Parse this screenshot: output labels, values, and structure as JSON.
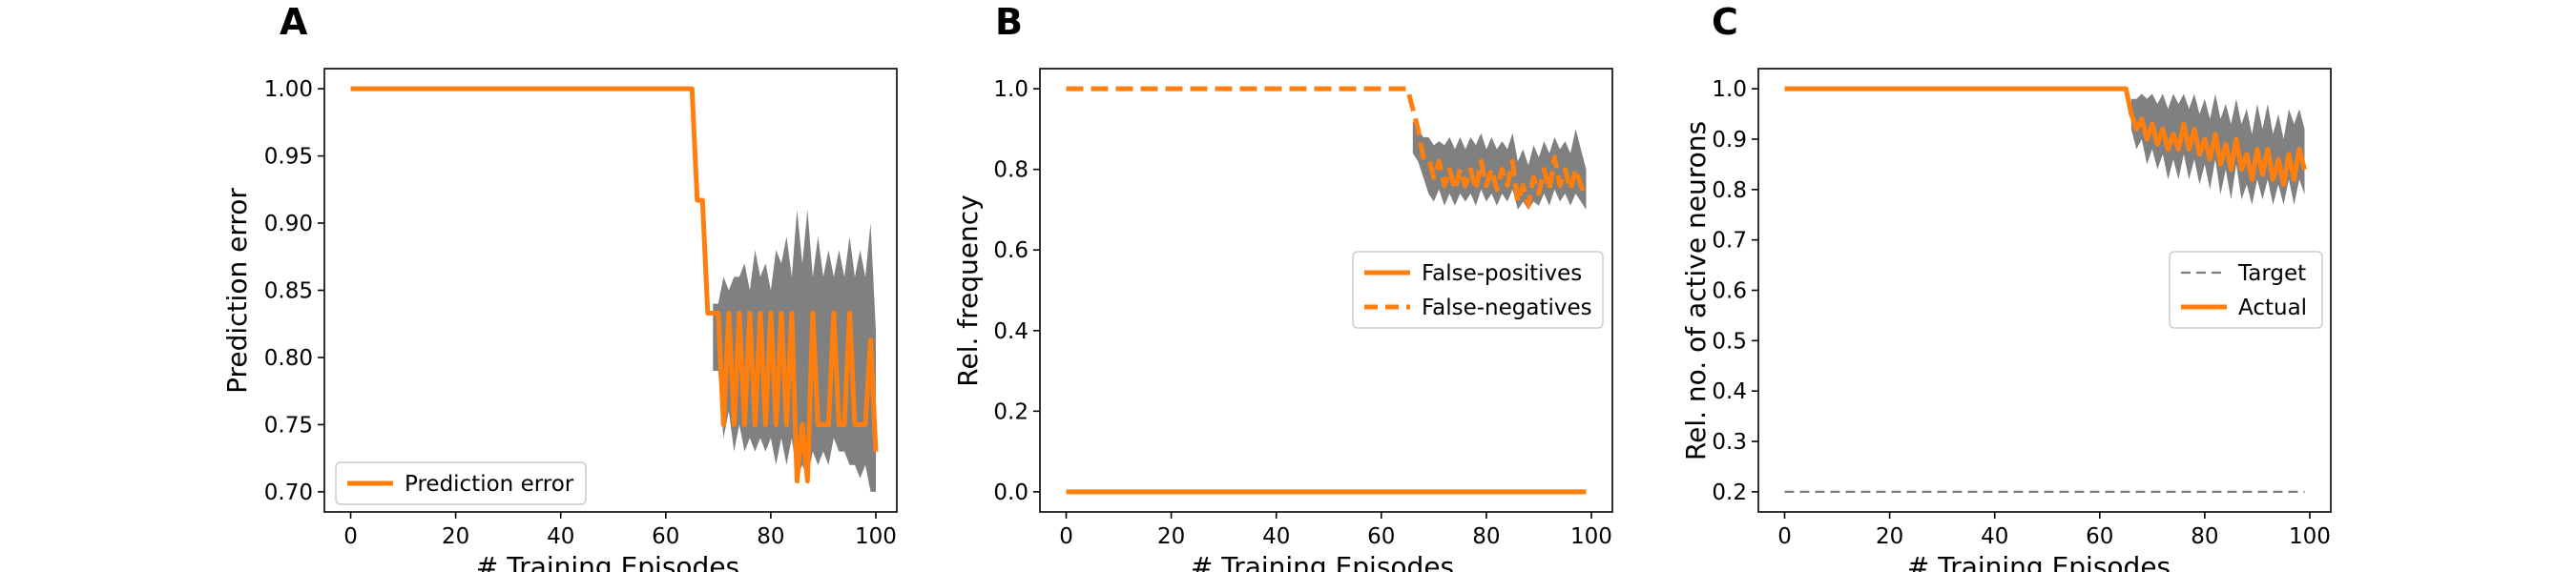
{
  "chart_data": [
    {
      "type": "line",
      "panel_label": "A",
      "xlabel": "# Training Episodes",
      "ylabel": "Prediction error",
      "xlim": [
        -5,
        104
      ],
      "ylim": [
        0.685,
        1.015
      ],
      "xticks": [
        0,
        20,
        40,
        60,
        80,
        100
      ],
      "yticks": [
        0.7,
        0.75,
        0.8,
        0.85,
        0.9,
        0.95,
        1.0
      ],
      "ytick_labels": [
        "0.70",
        "0.75",
        "0.80",
        "0.85",
        "0.90",
        "0.95",
        "1.00"
      ],
      "grid": false,
      "legend_position": "lower-left",
      "series": [
        {
          "name": "Prediction error",
          "style": "solid",
          "color": "#ff7f0e",
          "points": [
            [
              0,
              1.0
            ],
            [
              65,
              1.0
            ],
            [
              66,
              0.917
            ],
            [
              67,
              0.917
            ],
            [
              68,
              0.833
            ],
            [
              69,
              0.833
            ],
            [
              70,
              0.833
            ],
            [
              71,
              0.75
            ],
            [
              72,
              0.833
            ],
            [
              73,
              0.75
            ],
            [
              74,
              0.833
            ],
            [
              75,
              0.75
            ],
            [
              76,
              0.833
            ],
            [
              77,
              0.75
            ],
            [
              78,
              0.833
            ],
            [
              79,
              0.75
            ],
            [
              80,
              0.833
            ],
            [
              81,
              0.75
            ],
            [
              82,
              0.833
            ],
            [
              83,
              0.75
            ],
            [
              84,
              0.833
            ],
            [
              85,
              0.708
            ],
            [
              86,
              0.75
            ],
            [
              87,
              0.708
            ],
            [
              88,
              0.833
            ],
            [
              89,
              0.75
            ],
            [
              90,
              0.75
            ],
            [
              91,
              0.75
            ],
            [
              92,
              0.833
            ],
            [
              93,
              0.75
            ],
            [
              94,
              0.75
            ],
            [
              95,
              0.833
            ],
            [
              96,
              0.75
            ],
            [
              97,
              0.75
            ],
            [
              98,
              0.75
            ],
            [
              99,
              0.813
            ],
            [
              100,
              0.73
            ]
          ],
          "band": [
            [
              69,
              0.79,
              0.84
            ],
            [
              70,
              0.79,
              0.84
            ],
            [
              71,
              0.74,
              0.86
            ],
            [
              72,
              0.76,
              0.85
            ],
            [
              73,
              0.73,
              0.86
            ],
            [
              74,
              0.75,
              0.86
            ],
            [
              75,
              0.73,
              0.87
            ],
            [
              76,
              0.74,
              0.85
            ],
            [
              77,
              0.73,
              0.88
            ],
            [
              78,
              0.74,
              0.86
            ],
            [
              79,
              0.73,
              0.87
            ],
            [
              80,
              0.74,
              0.85
            ],
            [
              81,
              0.72,
              0.88
            ],
            [
              82,
              0.74,
              0.87
            ],
            [
              83,
              0.72,
              0.89
            ],
            [
              84,
              0.74,
              0.86
            ],
            [
              85,
              0.71,
              0.91
            ],
            [
              86,
              0.72,
              0.87
            ],
            [
              87,
              0.71,
              0.91
            ],
            [
              88,
              0.73,
              0.86
            ],
            [
              89,
              0.72,
              0.89
            ],
            [
              90,
              0.73,
              0.86
            ],
            [
              91,
              0.72,
              0.88
            ],
            [
              92,
              0.74,
              0.86
            ],
            [
              93,
              0.73,
              0.88
            ],
            [
              94,
              0.73,
              0.86
            ],
            [
              95,
              0.72,
              0.89
            ],
            [
              96,
              0.72,
              0.86
            ],
            [
              97,
              0.71,
              0.88
            ],
            [
              98,
              0.72,
              0.86
            ],
            [
              99,
              0.7,
              0.9
            ],
            [
              100,
              0.7,
              0.82
            ]
          ]
        }
      ]
    },
    {
      "type": "line",
      "panel_label": "B",
      "xlabel": "# Training Episodes",
      "ylabel": "Rel. frequency",
      "xlim": [
        -5,
        104
      ],
      "ylim": [
        -0.05,
        1.05
      ],
      "xticks": [
        0,
        20,
        40,
        60,
        80,
        100
      ],
      "yticks": [
        0.0,
        0.2,
        0.4,
        0.6,
        0.8,
        1.0
      ],
      "ytick_labels": [
        "0.0",
        "0.2",
        "0.4",
        "0.6",
        "0.8",
        "1.0"
      ],
      "grid": false,
      "legend_position": "center-right",
      "series": [
        {
          "name": "False-positives",
          "style": "solid",
          "color": "#ff7f0e",
          "points": [
            [
              0,
              0.0
            ],
            [
              99,
              0.0
            ]
          ]
        },
        {
          "name": "False-negatives",
          "style": "dashed",
          "color": "#ff7f0e",
          "points": [
            [
              0,
              1.0
            ],
            [
              65,
              1.0
            ],
            [
              66,
              0.95
            ],
            [
              67,
              0.9
            ],
            [
              68,
              0.83
            ],
            [
              69,
              0.83
            ],
            [
              70,
              0.78
            ],
            [
              71,
              0.82
            ],
            [
              72,
              0.76
            ],
            [
              73,
              0.8
            ],
            [
              74,
              0.75
            ],
            [
              75,
              0.8
            ],
            [
              76,
              0.76
            ],
            [
              77,
              0.8
            ],
            [
              78,
              0.75
            ],
            [
              79,
              0.82
            ],
            [
              80,
              0.76
            ],
            [
              81,
              0.8
            ],
            [
              82,
              0.75
            ],
            [
              83,
              0.8
            ],
            [
              84,
              0.76
            ],
            [
              85,
              0.82
            ],
            [
              86,
              0.72
            ],
            [
              87,
              0.76
            ],
            [
              88,
              0.71
            ],
            [
              89,
              0.78
            ],
            [
              90,
              0.74
            ],
            [
              91,
              0.8
            ],
            [
              92,
              0.75
            ],
            [
              93,
              0.83
            ],
            [
              94,
              0.76
            ],
            [
              95,
              0.8
            ],
            [
              96,
              0.75
            ],
            [
              97,
              0.8
            ],
            [
              98,
              0.76
            ],
            [
              99,
              0.73
            ]
          ]
        }
      ],
      "band": [
        [
          66,
          0.84,
          0.92
        ],
        [
          67,
          0.82,
          0.9
        ],
        [
          68,
          0.78,
          0.88
        ],
        [
          69,
          0.74,
          0.88
        ],
        [
          70,
          0.72,
          0.86
        ],
        [
          71,
          0.75,
          0.87
        ],
        [
          72,
          0.71,
          0.86
        ],
        [
          73,
          0.74,
          0.88
        ],
        [
          74,
          0.71,
          0.85
        ],
        [
          75,
          0.74,
          0.88
        ],
        [
          76,
          0.72,
          0.85
        ],
        [
          77,
          0.74,
          0.88
        ],
        [
          78,
          0.71,
          0.86
        ],
        [
          79,
          0.75,
          0.89
        ],
        [
          80,
          0.72,
          0.85
        ],
        [
          81,
          0.74,
          0.88
        ],
        [
          82,
          0.71,
          0.85
        ],
        [
          83,
          0.74,
          0.87
        ],
        [
          84,
          0.72,
          0.85
        ],
        [
          85,
          0.75,
          0.89
        ],
        [
          86,
          0.7,
          0.82
        ],
        [
          87,
          0.72,
          0.85
        ],
        [
          88,
          0.7,
          0.81
        ],
        [
          89,
          0.72,
          0.86
        ],
        [
          90,
          0.71,
          0.83
        ],
        [
          91,
          0.74,
          0.87
        ],
        [
          92,
          0.71,
          0.84
        ],
        [
          93,
          0.75,
          0.88
        ],
        [
          94,
          0.72,
          0.85
        ],
        [
          95,
          0.74,
          0.87
        ],
        [
          96,
          0.71,
          0.84
        ],
        [
          97,
          0.74,
          0.9
        ],
        [
          98,
          0.72,
          0.85
        ],
        [
          99,
          0.7,
          0.8
        ]
      ]
    },
    {
      "type": "line",
      "panel_label": "C",
      "xlabel": "# Training Episodes",
      "ylabel": "Rel. no. of active neurons",
      "xlim": [
        -5,
        104
      ],
      "ylim": [
        0.16,
        1.04
      ],
      "xticks": [
        0,
        20,
        40,
        60,
        80,
        100
      ],
      "yticks": [
        0.2,
        0.3,
        0.4,
        0.5,
        0.6,
        0.7,
        0.8,
        0.9,
        1.0
      ],
      "ytick_labels": [
        "0.2",
        "0.3",
        "0.4",
        "0.5",
        "0.6",
        "0.7",
        "0.8",
        "0.9",
        "1.0"
      ],
      "grid": false,
      "legend_position": "center-right",
      "series": [
        {
          "name": "Target",
          "style": "dashed-thin",
          "color": "#7f7f7f",
          "points": [
            [
              0,
              0.2
            ],
            [
              99,
              0.2
            ]
          ]
        },
        {
          "name": "Actual",
          "style": "solid",
          "color": "#ff7f0e",
          "points": [
            [
              0,
              1.0
            ],
            [
              65,
              1.0
            ],
            [
              66,
              0.95
            ],
            [
              67,
              0.92
            ],
            [
              68,
              0.94
            ],
            [
              69,
              0.9
            ],
            [
              70,
              0.93
            ],
            [
              71,
              0.89
            ],
            [
              72,
              0.92
            ],
            [
              73,
              0.88
            ],
            [
              74,
              0.91
            ],
            [
              75,
              0.88
            ],
            [
              76,
              0.93
            ],
            [
              77,
              0.88
            ],
            [
              78,
              0.92
            ],
            [
              79,
              0.87
            ],
            [
              80,
              0.9
            ],
            [
              81,
              0.86
            ],
            [
              82,
              0.91
            ],
            [
              83,
              0.85
            ],
            [
              84,
              0.89
            ],
            [
              85,
              0.84
            ],
            [
              86,
              0.9
            ],
            [
              87,
              0.84
            ],
            [
              88,
              0.87
            ],
            [
              89,
              0.82
            ],
            [
              90,
              0.88
            ],
            [
              91,
              0.83
            ],
            [
              92,
              0.88
            ],
            [
              93,
              0.82
            ],
            [
              94,
              0.86
            ],
            [
              95,
              0.81
            ],
            [
              96,
              0.87
            ],
            [
              97,
              0.82
            ],
            [
              98,
              0.88
            ],
            [
              99,
              0.84
            ]
          ]
        }
      ],
      "band": [
        [
          66,
          0.92,
          0.98
        ],
        [
          67,
          0.88,
          0.98
        ],
        [
          68,
          0.9,
          0.99
        ],
        [
          69,
          0.85,
          0.98
        ],
        [
          70,
          0.88,
          0.99
        ],
        [
          71,
          0.84,
          0.97
        ],
        [
          72,
          0.87,
          0.99
        ],
        [
          73,
          0.82,
          0.96
        ],
        [
          74,
          0.86,
          0.99
        ],
        [
          75,
          0.82,
          0.97
        ],
        [
          76,
          0.87,
          0.99
        ],
        [
          77,
          0.82,
          0.96
        ],
        [
          78,
          0.86,
          0.99
        ],
        [
          79,
          0.81,
          0.95
        ],
        [
          80,
          0.85,
          0.98
        ],
        [
          81,
          0.8,
          0.94
        ],
        [
          82,
          0.86,
          0.99
        ],
        [
          83,
          0.79,
          0.94
        ],
        [
          84,
          0.84,
          0.97
        ],
        [
          85,
          0.78,
          0.93
        ],
        [
          86,
          0.85,
          0.98
        ],
        [
          87,
          0.78,
          0.93
        ],
        [
          88,
          0.81,
          0.96
        ],
        [
          89,
          0.77,
          0.91
        ],
        [
          90,
          0.82,
          0.97
        ],
        [
          91,
          0.78,
          0.92
        ],
        [
          92,
          0.82,
          0.97
        ],
        [
          93,
          0.77,
          0.91
        ],
        [
          94,
          0.81,
          0.95
        ],
        [
          95,
          0.77,
          0.9
        ],
        [
          96,
          0.82,
          0.96
        ],
        [
          97,
          0.77,
          0.93
        ],
        [
          98,
          0.82,
          0.96
        ],
        [
          99,
          0.79,
          0.92
        ]
      ]
    }
  ]
}
